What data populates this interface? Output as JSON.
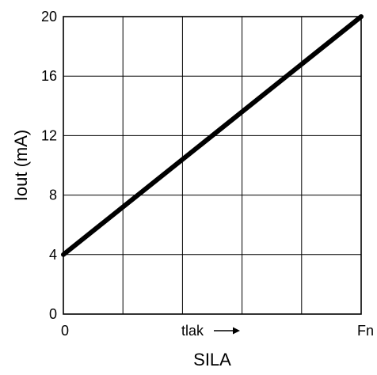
{
  "chart_data": {
    "type": "line",
    "title": "",
    "xlabel": "SILA",
    "ylabel": "Iout (mA)",
    "x_ticks": [
      "0",
      "",
      "",
      "",
      "",
      "Fn"
    ],
    "x_mid_annotation": "tlak",
    "y_ticks": [
      0,
      4,
      8,
      12,
      16,
      20
    ],
    "ylim": [
      0,
      20
    ],
    "xlim": [
      0,
      5
    ],
    "grid": true,
    "line_color": "#000000",
    "series": [
      {
        "x": [
          0,
          5
        ],
        "y": [
          4,
          20
        ]
      }
    ]
  }
}
